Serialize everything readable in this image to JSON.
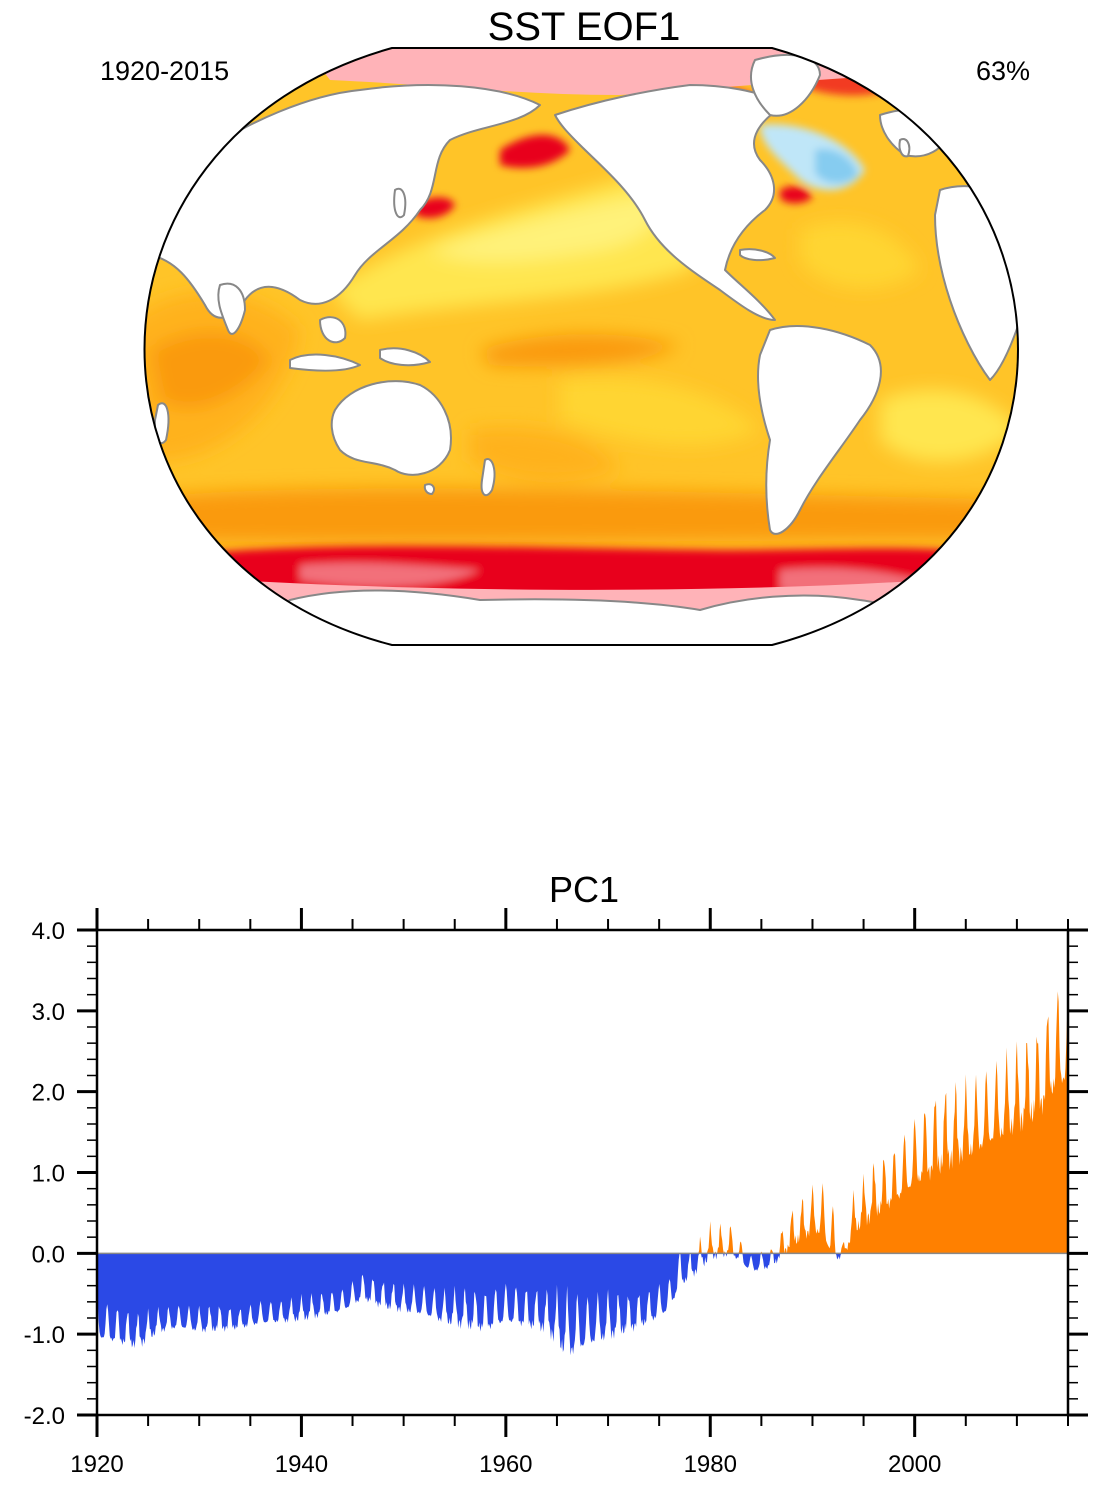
{
  "map": {
    "title": "SST EOF1",
    "period_label": "1920-2015",
    "variance_label": "63%",
    "projection": "robinson",
    "colors": {
      "pink": "#FFB3B8",
      "deep_red": "#E8001C",
      "red": "#F23A24",
      "red_orange": "#F26A1E",
      "orange": "#FA9A0E",
      "light_orange": "#FFB21A",
      "amber": "#FFC428",
      "gold": "#FFD532",
      "yellow": "#FFE650",
      "light_yellow": "#FFF27A",
      "light_blue": "#BFE6F8",
      "blue": "#86CCF0",
      "coast": "#888888",
      "land": "#FFFFFF"
    }
  },
  "chart_data": {
    "type": "area",
    "title": "PC1",
    "xlabel": "",
    "ylabel": "",
    "xlim": [
      1920,
      2015
    ],
    "ylim": [
      -2.0,
      4.0
    ],
    "x_ticks": [
      1920,
      1940,
      1960,
      1980,
      2000
    ],
    "y_ticks": [
      "4.0",
      "3.0",
      "2.0",
      "1.0",
      "0.0",
      "-1.0",
      "-2.0"
    ],
    "positive_color": "#FF8000",
    "negative_color": "#2B49E6",
    "baseline": 0.0,
    "x": [
      1920,
      1922,
      1924,
      1926,
      1928,
      1930,
      1932,
      1934,
      1936,
      1938,
      1940,
      1942,
      1944,
      1946,
      1948,
      1950,
      1952,
      1954,
      1956,
      1958,
      1960,
      1962,
      1964,
      1966,
      1968,
      1970,
      1972,
      1974,
      1976,
      1977,
      1978,
      1980,
      1982,
      1984,
      1986,
      1988,
      1990,
      1991,
      1992,
      1993,
      1994,
      1996,
      1998,
      2000,
      2002,
      2004,
      2006,
      2008,
      2010,
      2012,
      2014,
      2015
    ],
    "upper_envelope": [
      -0.5,
      -0.6,
      -0.7,
      -0.65,
      -0.6,
      -0.62,
      -0.6,
      -0.65,
      -0.55,
      -0.55,
      -0.5,
      -0.45,
      -0.4,
      -0.2,
      -0.3,
      -0.35,
      -0.35,
      -0.4,
      -0.38,
      -0.4,
      -0.3,
      -0.35,
      -0.4,
      -0.35,
      -0.45,
      -0.4,
      -0.45,
      -0.4,
      -0.25,
      0.1,
      0.05,
      0.4,
      0.4,
      0.0,
      0.1,
      0.6,
      0.9,
      0.95,
      0.7,
      0.15,
      0.8,
      1.2,
      1.4,
      1.8,
      2.1,
      2.2,
      2.3,
      2.5,
      2.7,
      2.9,
      3.45,
      3.3
    ],
    "lower_envelope": [
      -1.1,
      -1.15,
      -1.2,
      -1.0,
      -0.95,
      -1.0,
      -0.98,
      -0.95,
      -0.9,
      -0.88,
      -0.85,
      -0.8,
      -0.75,
      -0.6,
      -0.7,
      -0.75,
      -0.8,
      -0.9,
      -0.95,
      -1.0,
      -0.9,
      -0.95,
      -1.0,
      -1.35,
      -1.2,
      -1.1,
      -1.0,
      -0.9,
      -0.75,
      -0.45,
      -0.35,
      -0.1,
      -0.05,
      -0.25,
      -0.2,
      0.05,
      0.2,
      0.15,
      -0.15,
      -0.1,
      0.2,
      0.4,
      0.55,
      0.75,
      0.9,
      1.05,
      1.15,
      1.3,
      1.45,
      1.6,
      1.95,
      2.0
    ]
  }
}
